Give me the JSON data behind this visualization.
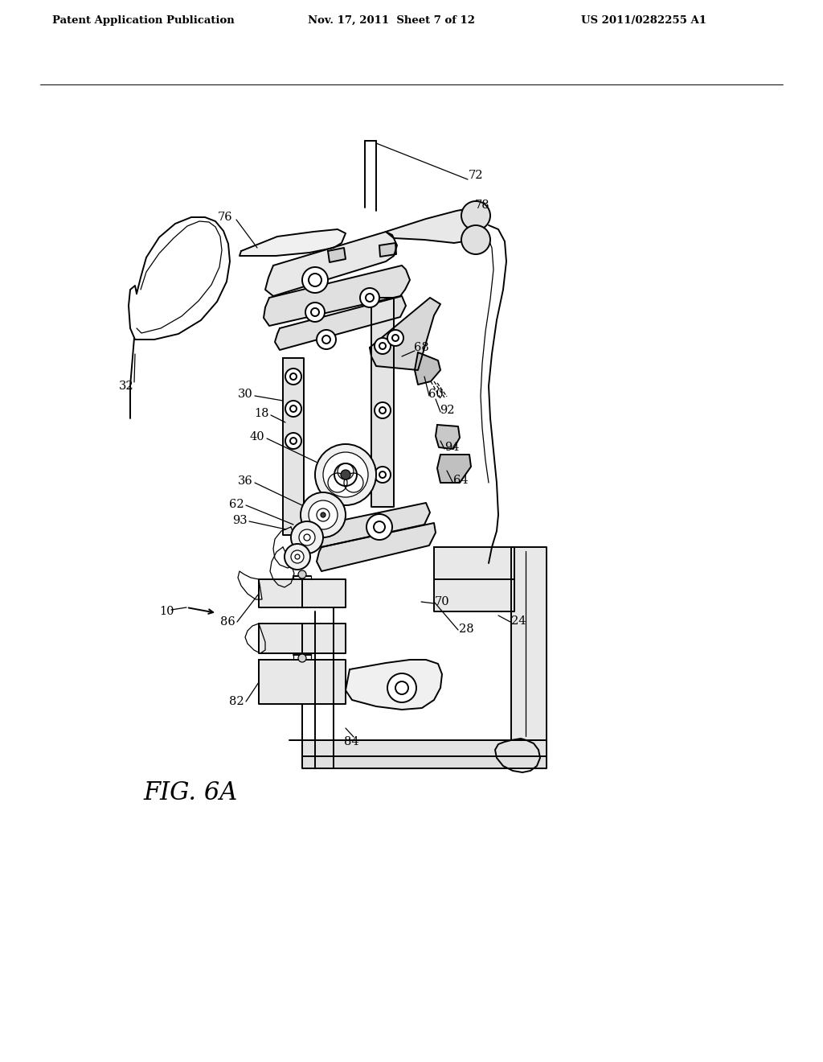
{
  "header_left": "Patent Application Publication",
  "header_mid": "Nov. 17, 2011  Sheet 7 of 12",
  "header_right": "US 2011/0282255 A1",
  "figure_label": "FIG. 6A",
  "bg_color": "#ffffff",
  "lc": "#000000",
  "lw": 1.4,
  "lw_thin": 0.9,
  "label_fontsize": 10.5,
  "header_fontsize": 9.5,
  "fig_label_fontsize": 22
}
